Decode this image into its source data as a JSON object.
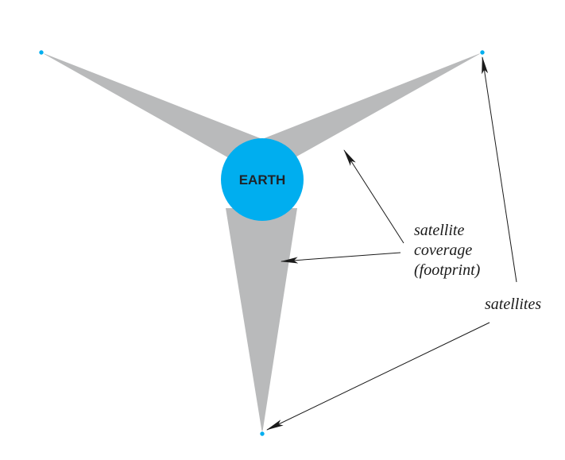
{
  "diagram": {
    "earth": {
      "label": "EARTH",
      "color": "#00aeef",
      "label_color": "#1f2328"
    },
    "footprint_color": "#b9babb",
    "satellite_color": "#00aeef",
    "annotations": {
      "coverage_line1": "satellite",
      "coverage_line2": "coverage",
      "coverage_line3": "(footprint)",
      "satellites": "satellites"
    },
    "satellites": [
      {
        "name": "satellite-top-left"
      },
      {
        "name": "satellite-top-right"
      },
      {
        "name": "satellite-bottom"
      }
    ]
  }
}
